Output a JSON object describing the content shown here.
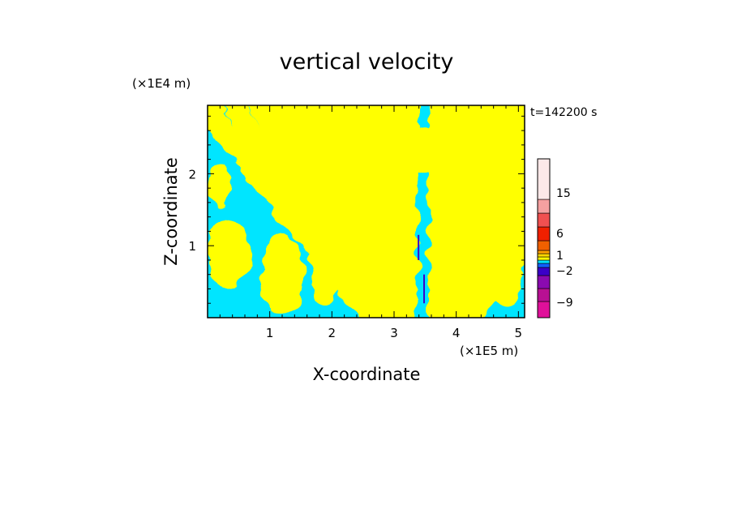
{
  "chart_data": {
    "type": "heatmap",
    "title": "vertical velocity",
    "xlabel": "X-coordinate",
    "ylabel": "Z-coordinate",
    "x_unit": "(×1E5 m)",
    "y_unit": "(×1E4 m)",
    "time_label": "t=142200 s",
    "xlim": [
      0,
      5.1
    ],
    "ylim": [
      0,
      2.95
    ],
    "x_ticks": [
      {
        "value": 1,
        "label": "1"
      },
      {
        "value": 2,
        "label": "2"
      },
      {
        "value": 3,
        "label": "3"
      },
      {
        "value": 4,
        "label": "4"
      },
      {
        "value": 5,
        "label": "5"
      }
    ],
    "y_ticks": [
      {
        "value": 1,
        "label": "1"
      },
      {
        "value": 2,
        "label": "2"
      }
    ],
    "colorbar": {
      "levels": [
        {
          "color": "#e0109a"
        },
        {
          "color": "#b81093"
        },
        {
          "color": "#8a0ab0"
        },
        {
          "color": "#3a00c8"
        },
        {
          "color": "#1060ff"
        },
        {
          "color": "#00e0ff"
        },
        {
          "color": "#ffff00"
        },
        {
          "color": "#ffd800"
        },
        {
          "color": "#ffa000"
        },
        {
          "color": "#f06000"
        },
        {
          "color": "#f02000"
        },
        {
          "color": "#f05050"
        },
        {
          "color": "#f5a0a0"
        },
        {
          "color": "#fce8e8"
        }
      ],
      "labels": [
        "15",
        "6",
        "1",
        "−2",
        "−9"
      ]
    },
    "field_colors": {
      "positive": "#ffff00",
      "negative": "#00e5ff",
      "strong_negative": "#3a00c8"
    }
  }
}
